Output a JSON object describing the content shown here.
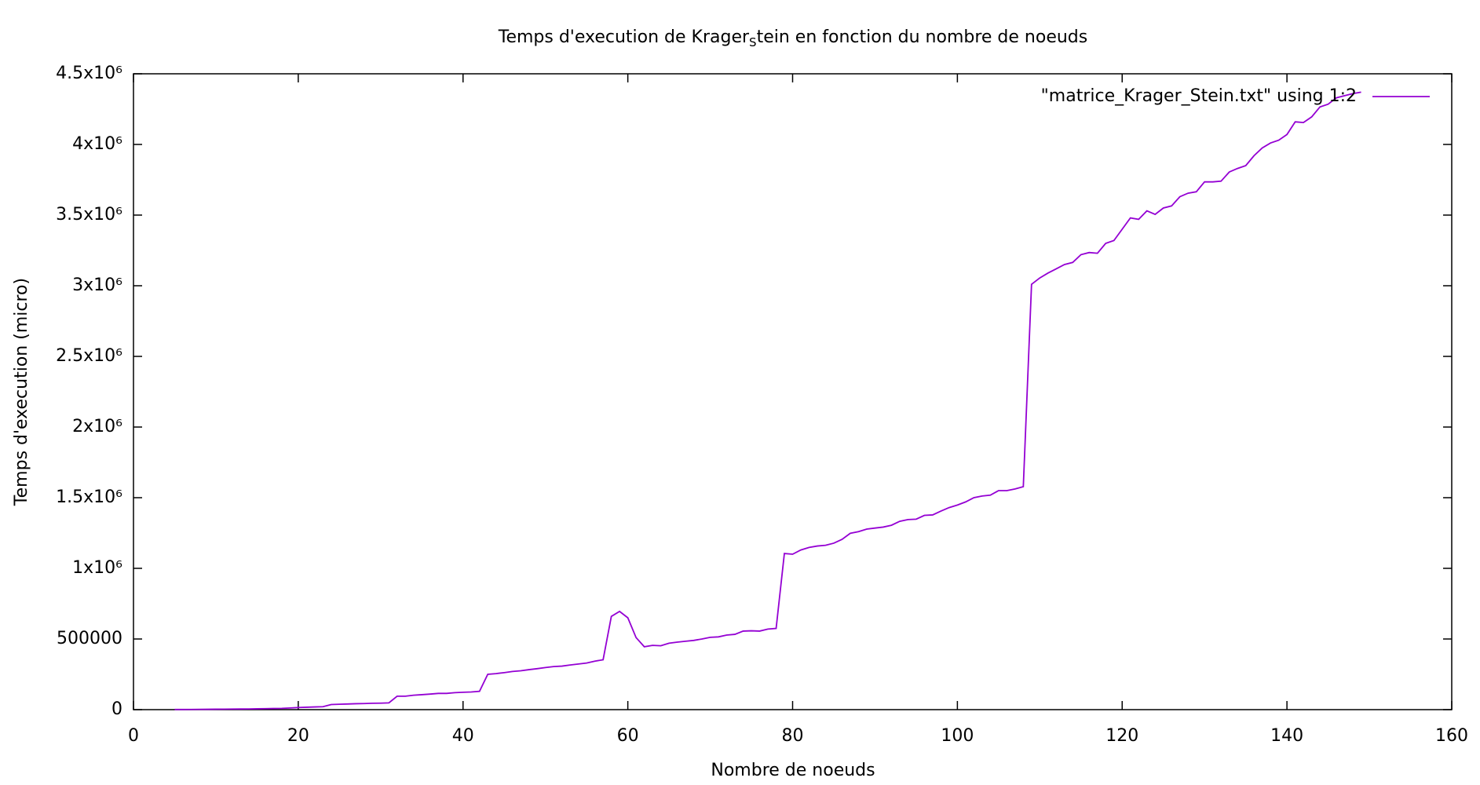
{
  "chart_data": {
    "type": "line",
    "title": [
      "Temps d'execution de Krager",
      "S",
      "tein en fonction du nombre de noeuds"
    ],
    "x_label": "Nombre de noeuds",
    "y_label": "Temps d'execution (micro)",
    "xlim": [
      0,
      160
    ],
    "xticks": [
      0,
      20,
      40,
      60,
      80,
      100,
      120,
      140,
      160
    ],
    "ylim": [
      0,
      4500000
    ],
    "yticks": [
      0,
      500000,
      {
        "value": 1000000,
        "label": "1x10⁶"
      },
      {
        "value": 1500000,
        "label": "1.5x10⁶"
      },
      {
        "value": 2000000,
        "label": "2x10⁶"
      },
      {
        "value": 2500000,
        "label": "2.5x10⁶"
      },
      {
        "value": 3000000,
        "label": "3x10⁶"
      },
      {
        "value": 3500000,
        "label": "3.5x10⁶"
      },
      {
        "value": 4000000,
        "label": "4x10⁶"
      },
      {
        "value": 4500000,
        "label": "4.5x10⁶"
      }
    ],
    "grid": false,
    "legend": "top-right",
    "x": [
      5,
      6,
      7,
      8,
      9,
      10,
      11,
      12,
      13,
      14,
      15,
      16,
      17,
      18,
      19,
      20,
      21,
      22,
      23,
      24,
      25,
      26,
      27,
      28,
      29,
      30,
      31,
      32,
      33,
      34,
      35,
      36,
      37,
      38,
      39,
      40,
      41,
      42,
      43,
      44,
      45,
      46,
      47,
      48,
      49,
      50,
      51,
      52,
      53,
      54,
      55,
      56,
      57,
      58,
      59,
      60,
      61,
      62,
      63,
      64,
      65,
      66,
      67,
      68,
      69,
      70,
      71,
      72,
      73,
      74,
      75,
      76,
      77,
      78,
      79,
      80,
      81,
      82,
      83,
      84,
      85,
      86,
      87,
      88,
      89,
      90,
      91,
      92,
      93,
      94,
      95,
      96,
      97,
      98,
      99,
      100,
      101,
      102,
      103,
      104,
      105,
      106,
      107,
      108,
      109,
      110,
      111,
      112,
      113,
      114,
      115,
      116,
      117,
      118,
      119,
      120,
      121,
      122,
      123,
      124,
      125,
      126,
      127,
      128,
      129,
      130,
      131,
      132,
      133,
      134,
      135,
      136,
      137,
      138,
      139,
      140,
      141,
      142,
      143,
      144,
      145,
      146,
      147,
      148,
      149
    ],
    "series": [
      {
        "name": "\"matrice_Krager_Stein.txt\" using 1:2",
        "color": "#9400d3",
        "values": [
          1000,
          1000,
          1500,
          2000,
          2500,
          3000,
          3500,
          4000,
          4500,
          5000,
          6000,
          7000,
          8000,
          9000,
          12000,
          15000,
          17000,
          19000,
          21000,
          36000,
          38000,
          40000,
          42000,
          43000,
          45000,
          46000,
          48000,
          95000,
          95000,
          102000,
          106000,
          110000,
          115000,
          115000,
          120000,
          123000,
          125000,
          130000,
          250000,
          255000,
          262000,
          270000,
          275000,
          283000,
          290000,
          298000,
          305000,
          308000,
          316000,
          323000,
          330000,
          343000,
          353000,
          660000,
          695000,
          650000,
          510000,
          445000,
          455000,
          452000,
          470000,
          478000,
          484000,
          490000,
          500000,
          512000,
          515000,
          528000,
          533000,
          556000,
          558000,
          556000,
          570000,
          575000,
          1105000,
          1100000,
          1130000,
          1148000,
          1158000,
          1163000,
          1178000,
          1205000,
          1248000,
          1260000,
          1278000,
          1285000,
          1292000,
          1305000,
          1333000,
          1345000,
          1348000,
          1375000,
          1378000,
          1405000,
          1430000,
          1448000,
          1470000,
          1500000,
          1512000,
          1518000,
          1550000,
          1550000,
          1562000,
          1578000,
          3010000,
          3055000,
          3090000,
          3120000,
          3150000,
          3165000,
          3220000,
          3235000,
          3230000,
          3300000,
          3320000,
          3400000,
          3480000,
          3470000,
          3530000,
          3505000,
          3550000,
          3565000,
          3630000,
          3655000,
          3665000,
          3735000,
          3735000,
          3740000,
          3805000,
          3830000,
          3850000,
          3920000,
          3975000,
          4010000,
          4030000,
          4070000,
          4160000,
          4155000,
          4195000,
          4265000,
          4285000,
          4330000,
          4345000,
          4360000,
          4370000
        ]
      }
    ]
  }
}
